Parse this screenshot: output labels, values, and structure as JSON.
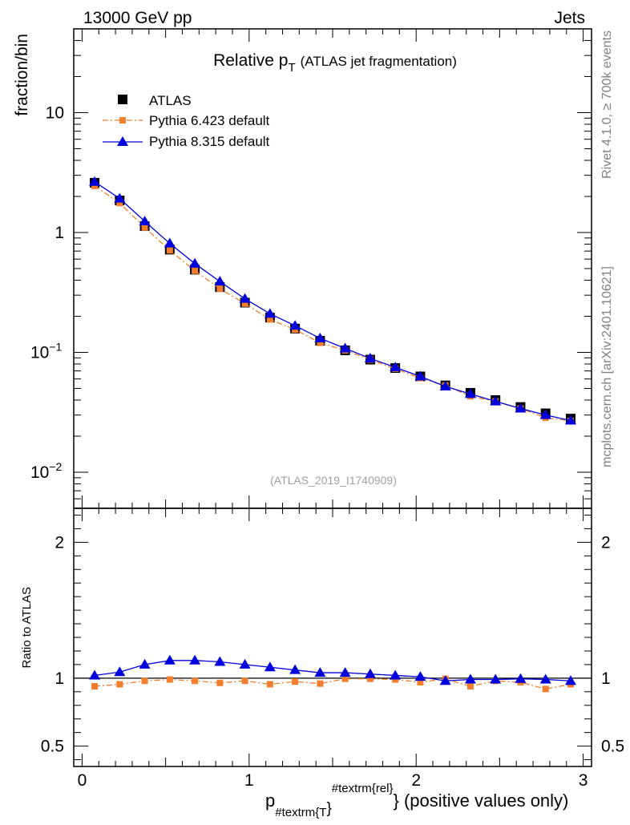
{
  "header": {
    "left": "13000 GeV pp",
    "right": "Jets"
  },
  "side_labels": {
    "top": "Rivet 4.1.0, ≥ 700k events",
    "bottom": "mcplots.cern.ch [arXiv:2401.10621]"
  },
  "chart_data": {
    "type": "line",
    "title": "Relative p",
    "title_subscript": "T",
    "title_suffix": "(ATLAS jet fragmentation)",
    "analysis_tag": "(ATLAS_2019_I1740909)",
    "ylabel_main": "fraction/bin",
    "ylabel_ratio": "Ratio to ATLAS",
    "xlabel": {
      "base": "p",
      "subscript": "#textrm{T",
      "close": "}",
      "superscript": "#textrm{rel}",
      "suffix": "} (positive values only)"
    },
    "x_range": [
      -0.05,
      3.05
    ],
    "y_range_main": [
      0.005,
      50
    ],
    "y_scale_main": "log",
    "y_range_ratio": [
      0.35,
      2.25
    ],
    "x_ticks": [
      {
        "value": 0,
        "label": "0"
      },
      {
        "value": 1,
        "label": "1"
      },
      {
        "value": 2,
        "label": "2"
      },
      {
        "value": 3,
        "label": "3"
      }
    ],
    "y_ticks_main": [
      {
        "value": 10,
        "label": "10"
      },
      {
        "value": 1,
        "label": "1"
      },
      {
        "value": 0.1,
        "label": "10",
        "sup": "−1"
      },
      {
        "value": 0.01,
        "label": "10",
        "sup": "−2"
      }
    ],
    "y_ticks_ratio": [
      {
        "value": 2,
        "label": "2"
      },
      {
        "value": 1,
        "label": "1"
      },
      {
        "value": 0.5,
        "label": "0.5"
      }
    ],
    "x": [
      0.075,
      0.225,
      0.375,
      0.525,
      0.675,
      0.825,
      0.975,
      1.125,
      1.275,
      1.425,
      1.575,
      1.725,
      1.875,
      2.025,
      2.175,
      2.325,
      2.475,
      2.625,
      2.775,
      2.925
    ],
    "series": [
      {
        "name": "ATLAS",
        "color": "#000000",
        "marker": "square",
        "values": [
          2.6,
          1.85,
          1.13,
          0.72,
          0.49,
          0.35,
          0.26,
          0.195,
          0.158,
          0.125,
          0.104,
          0.087,
          0.074,
          0.063,
          0.053,
          0.046,
          0.04,
          0.035,
          0.031,
          0.028
        ],
        "ratio": [
          1,
          1,
          1,
          1,
          1,
          1,
          1,
          1,
          1,
          1,
          1,
          1,
          1,
          1,
          1,
          1,
          1,
          1,
          1,
          1
        ]
      },
      {
        "name": "Pythia 6.423 default",
        "color": "#f37f2e",
        "marker": "square-small",
        "line": "dashdot",
        "values": [
          2.45,
          1.76,
          1.1,
          0.71,
          0.48,
          0.34,
          0.255,
          0.188,
          0.155,
          0.12,
          0.104,
          0.087,
          0.073,
          0.061,
          0.053,
          0.043,
          0.039,
          0.034,
          0.0285,
          0.0268
        ],
        "ratio": [
          0.94,
          0.955,
          0.98,
          0.99,
          0.98,
          0.965,
          0.98,
          0.955,
          0.975,
          0.96,
          0.995,
          0.995,
          0.99,
          0.97,
          0.995,
          0.94,
          0.98,
          0.97,
          0.92,
          0.955
        ]
      },
      {
        "name": "Pythia 8.315 default",
        "color": "#0000dd",
        "marker": "triangle",
        "line": "solid",
        "values": [
          2.65,
          1.92,
          1.24,
          0.81,
          0.55,
          0.39,
          0.28,
          0.21,
          0.167,
          0.131,
          0.108,
          0.089,
          0.075,
          0.063,
          0.052,
          0.045,
          0.039,
          0.034,
          0.03,
          0.027
        ],
        "ratio": [
          1.02,
          1.045,
          1.1,
          1.13,
          1.13,
          1.12,
          1.1,
          1.08,
          1.06,
          1.04,
          1.04,
          1.03,
          1.02,
          1.01,
          0.98,
          0.99,
          0.99,
          0.995,
          0.99,
          0.98
        ]
      }
    ]
  }
}
